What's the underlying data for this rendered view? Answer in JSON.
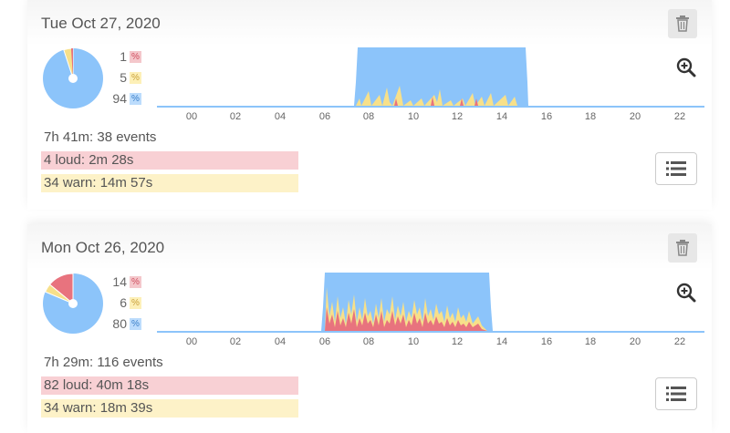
{
  "days": [
    {
      "date": "Tue Oct 27, 2020",
      "percentages": [
        {
          "value": "1",
          "symbol": "%",
          "kind": "loud"
        },
        {
          "value": "5",
          "symbol": "%",
          "kind": "warn"
        },
        {
          "value": "94",
          "symbol": "%",
          "kind": "quiet"
        }
      ],
      "summary": "7h 41m: 38 events",
      "loud_label": "4 loud: 2m 28s",
      "warn_label": "34 warn: 14m 57s",
      "x_ticks": [
        "00",
        "02",
        "04",
        "06",
        "08",
        "10",
        "12",
        "14",
        "16",
        "18",
        "20",
        "22"
      ]
    },
    {
      "date": "Mon Oct 26, 2020",
      "percentages": [
        {
          "value": "14",
          "symbol": "%",
          "kind": "loud"
        },
        {
          "value": "6",
          "symbol": "%",
          "kind": "warn"
        },
        {
          "value": "80",
          "symbol": "%",
          "kind": "quiet"
        }
      ],
      "summary": "7h 29m: 116 events",
      "loud_label": "82 loud: 40m 18s",
      "warn_label": "34 warn: 18m 39s",
      "x_ticks": [
        "00",
        "02",
        "04",
        "06",
        "08",
        "10",
        "12",
        "14",
        "16",
        "18",
        "20",
        "22"
      ]
    }
  ],
  "colors": {
    "quiet": "#8cc4fa",
    "warn": "#f7e08a",
    "loud": "#e8737e"
  }
}
